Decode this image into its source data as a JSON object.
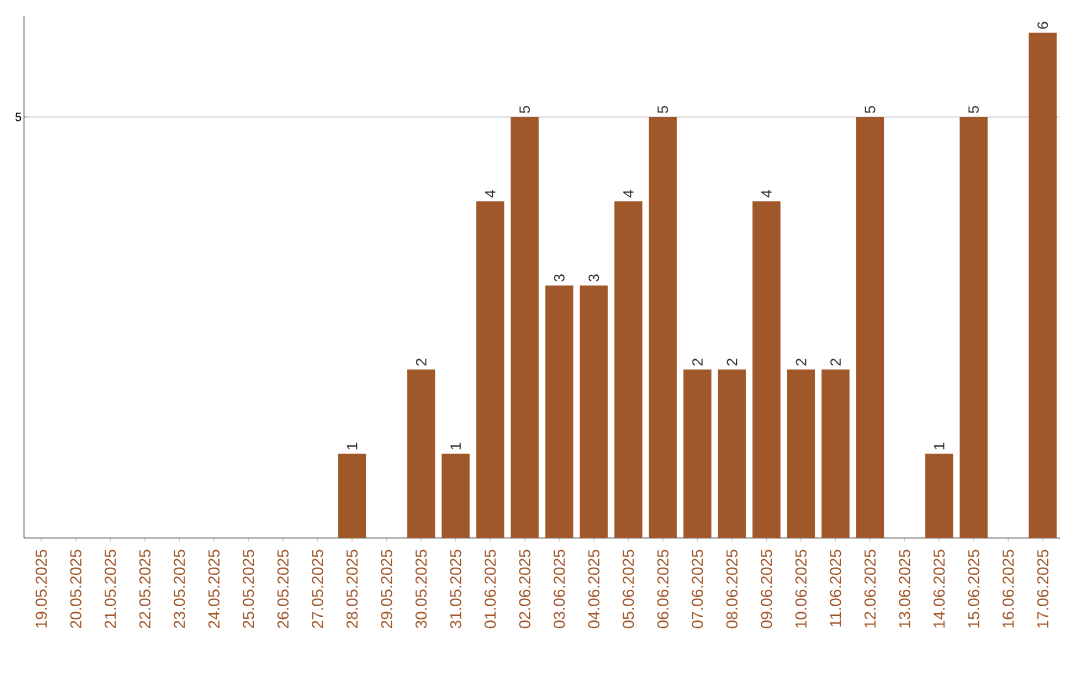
{
  "chart_data": {
    "type": "bar",
    "categories": [
      "19.05.2025",
      "20.05.2025",
      "21.05.2025",
      "22.05.2025",
      "23.05.2025",
      "24.05.2025",
      "25.05.2025",
      "26.05.2025",
      "27.05.2025",
      "28.05.2025",
      "29.05.2025",
      "30.05.2025",
      "31.05.2025",
      "01.06.2025",
      "02.06.2025",
      "03.06.2025",
      "04.06.2025",
      "05.06.2025",
      "06.06.2025",
      "07.06.2025",
      "08.06.2025",
      "09.06.2025",
      "10.06.2025",
      "11.06.2025",
      "12.06.2025",
      "13.06.2025",
      "14.06.2025",
      "15.06.2025",
      "16.06.2025",
      "17.06.2025"
    ],
    "values": [
      0,
      0,
      0,
      0,
      0,
      0,
      0,
      0,
      0,
      1,
      0,
      2,
      1,
      4,
      5,
      3,
      3,
      4,
      5,
      2,
      2,
      4,
      2,
      2,
      5,
      0,
      1,
      5,
      0,
      6
    ],
    "value_labels": [
      null,
      null,
      null,
      null,
      null,
      null,
      null,
      null,
      null,
      "1",
      null,
      "2",
      "1",
      "4",
      "5",
      "3",
      "3",
      "4",
      "5",
      "2",
      "2",
      "4",
      "2",
      "2",
      "5",
      null,
      "1",
      "5",
      null,
      "6"
    ],
    "color": "#a0572a",
    "ylim": [
      0,
      6.2
    ],
    "yticks": [
      5
    ],
    "grid": "y"
  }
}
